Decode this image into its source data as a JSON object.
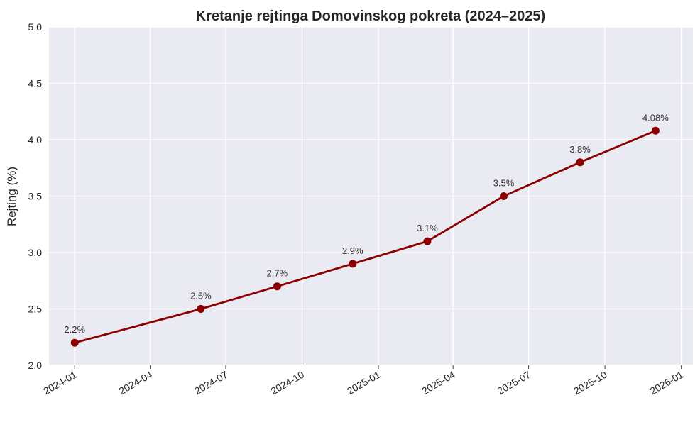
{
  "chart_data": {
    "type": "line",
    "title": "Kretanje rejtinga Domovinskog pokreta (2024–2025)",
    "xlabel": "",
    "ylabel": "Rejting (%)",
    "x_type": "date",
    "xlim": [
      "2023-12-01",
      "2026-01-15"
    ],
    "ylim": [
      2.0,
      5.0
    ],
    "yticks": [
      "2.0",
      "2.5",
      "3.0",
      "3.5",
      "4.0",
      "4.5",
      "5.0"
    ],
    "xticks": [
      {
        "date": "2024-01-01",
        "label": "2024-01"
      },
      {
        "date": "2024-04-01",
        "label": "2024-04"
      },
      {
        "date": "2024-07-01",
        "label": "2024-07"
      },
      {
        "date": "2024-10-01",
        "label": "2024-10"
      },
      {
        "date": "2025-01-01",
        "label": "2025-01"
      },
      {
        "date": "2025-04-01",
        "label": "2025-04"
      },
      {
        "date": "2025-07-01",
        "label": "2025-07"
      },
      {
        "date": "2025-10-01",
        "label": "2025-10"
      },
      {
        "date": "2026-01-01",
        "label": "2026-01"
      }
    ],
    "grid": true,
    "series": [
      {
        "color": "#8b0000",
        "points": [
          {
            "x": "2024-01-01",
            "y": 2.2,
            "label": "2.2%"
          },
          {
            "x": "2024-06-01",
            "y": 2.5,
            "label": "2.5%"
          },
          {
            "x": "2024-09-01",
            "y": 2.7,
            "label": "2.7%"
          },
          {
            "x": "2024-12-01",
            "y": 2.9,
            "label": "2.9%"
          },
          {
            "x": "2025-03-01",
            "y": 3.1,
            "label": "3.1%"
          },
          {
            "x": "2025-06-01",
            "y": 3.5,
            "label": "3.5%"
          },
          {
            "x": "2025-09-01",
            "y": 3.8,
            "label": "3.8%"
          },
          {
            "x": "2025-12-01",
            "y": 4.08,
            "label": "4.08%"
          }
        ]
      }
    ],
    "colors": {
      "plot_background": "#eaeaf2",
      "grid": "#ffffff"
    }
  }
}
